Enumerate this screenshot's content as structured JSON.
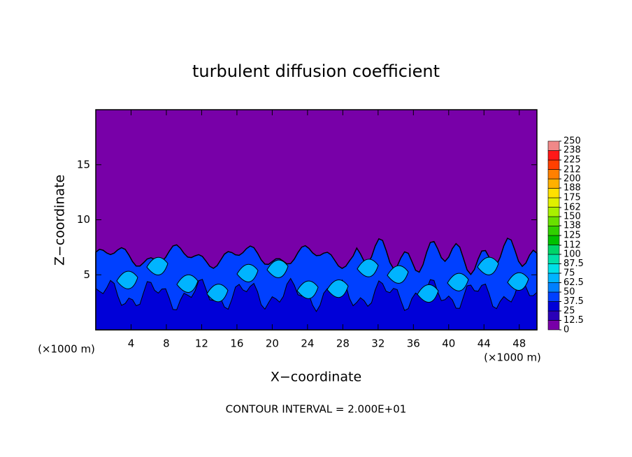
{
  "chart_data": {
    "type": "contour",
    "title": "turbulent diffusion coefficient",
    "x_label": "X−coordinate",
    "y_label": "Z−coordinate",
    "x_unit_label": "(×1000 m)",
    "x_unit_label_right": "(×1000 m)",
    "footnote": "CONTOUR INTERVAL = 2.000E+01",
    "xlim": [
      0,
      50
    ],
    "ylim": [
      0,
      20
    ],
    "xticks": [
      4,
      8,
      12,
      16,
      20,
      24,
      28,
      32,
      36,
      40,
      44,
      48
    ],
    "yticks": [
      5,
      10,
      15
    ],
    "colorbar_lim": [
      0,
      250
    ],
    "colorbar_ticks": [
      0,
      12.5,
      25,
      37.5,
      50,
      62.5,
      75,
      87.5,
      100,
      112,
      125,
      138,
      150,
      162,
      175,
      188,
      200,
      212,
      225,
      238,
      250
    ],
    "colors": [
      "#7800a8",
      "#2a00b8",
      "#0000d8",
      "#0040ff",
      "#0080ff",
      "#00b4ff",
      "#00e0e8",
      "#00e0a8",
      "#00d468",
      "#00c000",
      "#30d000",
      "#68e000",
      "#a8f000",
      "#e0f000",
      "#ffe000",
      "#ffb000",
      "#ff8000",
      "#ff4000",
      "#ff1818",
      "#f08888"
    ]
  }
}
